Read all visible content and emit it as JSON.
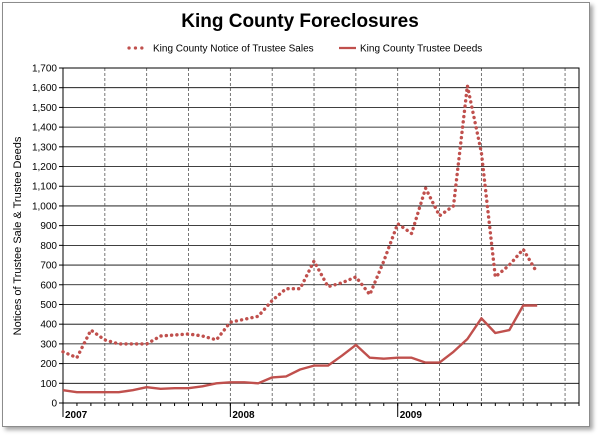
{
  "chart_data": {
    "type": "line",
    "title": "King County Foreclosures",
    "xlabel": "",
    "ylabel": "Notices of Trustee Sale & Trustee Deeds",
    "ylim": [
      0,
      1700
    ],
    "yticks": [
      0,
      100,
      200,
      300,
      400,
      500,
      600,
      700,
      800,
      900,
      1000,
      1100,
      1200,
      1300,
      1400,
      1500,
      1600,
      1700
    ],
    "ytick_labels": [
      "0",
      "100",
      "200",
      "300",
      "400",
      "500",
      "600",
      "700",
      "800",
      "900",
      "1,000",
      "1,100",
      "1,200",
      "1,300",
      "1,400",
      "1,500",
      "1,600",
      "1,700"
    ],
    "x_start": "2007-01",
    "x_unit": "month",
    "x_range": [
      "2007-01",
      "2010-02"
    ],
    "x_year_ticks": [
      {
        "label": "2007",
        "x": "2007-01"
      },
      {
        "label": "2008",
        "x": "2008-01"
      },
      {
        "label": "2009",
        "x": "2009-01"
      }
    ],
    "x_gridlines_every_months": 3,
    "grid": true,
    "legend_position": "top",
    "series": [
      {
        "name": "King County Notice of Trustee Sales",
        "style": "dotted",
        "color": "#c0504d",
        "x": [
          "2007-01",
          "2007-02",
          "2007-03",
          "2007-04",
          "2007-05",
          "2007-06",
          "2007-07",
          "2007-08",
          "2007-09",
          "2007-10",
          "2007-11",
          "2007-12",
          "2008-01",
          "2008-02",
          "2008-03",
          "2008-04",
          "2008-05",
          "2008-06",
          "2008-07",
          "2008-08",
          "2008-09",
          "2008-10",
          "2008-11",
          "2008-12",
          "2009-01",
          "2009-02",
          "2009-03",
          "2009-04",
          "2009-05",
          "2009-06",
          "2009-07",
          "2009-08",
          "2009-09",
          "2009-10",
          "2009-11"
        ],
        "values": [
          260,
          230,
          370,
          320,
          300,
          300,
          300,
          340,
          345,
          350,
          340,
          320,
          410,
          425,
          440,
          520,
          580,
          580,
          720,
          590,
          610,
          640,
          550,
          720,
          910,
          860,
          1090,
          950,
          1000,
          1610,
          1270,
          640,
          700,
          780,
          660
        ]
      },
      {
        "name": "King County Trustee Deeds",
        "style": "solid",
        "color": "#c0504d",
        "x": [
          "2007-01",
          "2007-02",
          "2007-03",
          "2007-04",
          "2007-05",
          "2007-06",
          "2007-07",
          "2007-08",
          "2007-09",
          "2007-10",
          "2007-11",
          "2007-12",
          "2008-01",
          "2008-02",
          "2008-03",
          "2008-04",
          "2008-05",
          "2008-06",
          "2008-07",
          "2008-08",
          "2008-09",
          "2008-10",
          "2008-11",
          "2008-12",
          "2009-01",
          "2009-02",
          "2009-03",
          "2009-04",
          "2009-05",
          "2009-06",
          "2009-07",
          "2009-08",
          "2009-09",
          "2009-10",
          "2009-11"
        ],
        "values": [
          65,
          55,
          55,
          55,
          55,
          65,
          80,
          72,
          75,
          75,
          85,
          100,
          105,
          105,
          100,
          130,
          135,
          170,
          190,
          190,
          240,
          295,
          230,
          225,
          230,
          230,
          205,
          205,
          260,
          325,
          430,
          355,
          370,
          495,
          495
        ]
      }
    ]
  }
}
